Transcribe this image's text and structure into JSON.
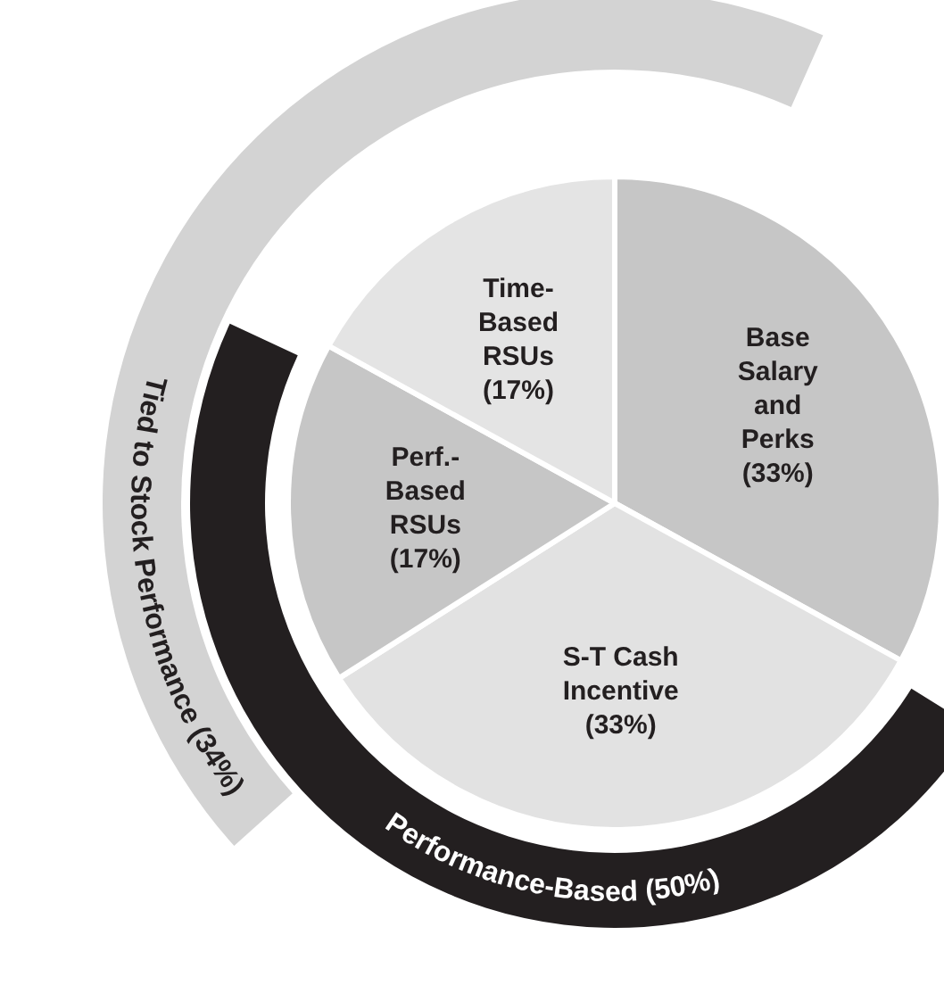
{
  "chart_data": {
    "type": "pie",
    "categories": [
      "Base Salary and Perks",
      "S-T Cash Incentive",
      "Perf.-Based RSUs",
      "Time-Based RSUs"
    ],
    "values": [
      33,
      33,
      17,
      17
    ],
    "value_labels": [
      "(33%)",
      "(33%)",
      "(17%)",
      "(17%)"
    ],
    "colors": [
      "#c6c6c6",
      "#e2e2e2",
      "#c6c6c6",
      "#e4e4e4"
    ],
    "annotations": [
      "Tied to Stock Performance (34%)",
      "Performance-Based (50%)"
    ],
    "legend": false
  }
}
